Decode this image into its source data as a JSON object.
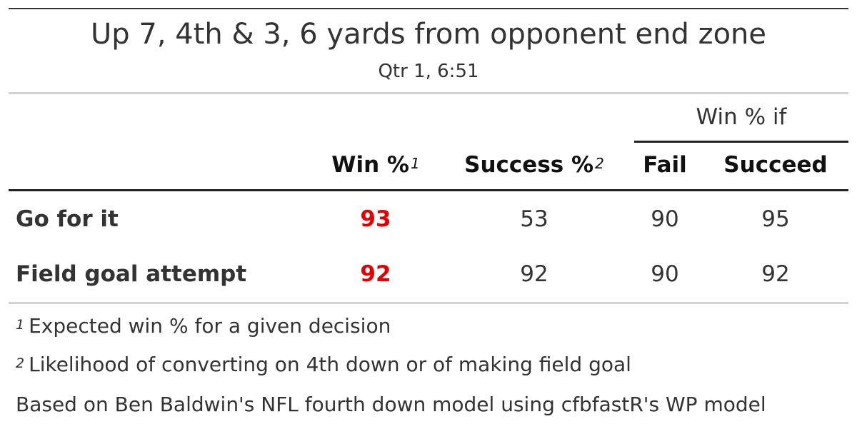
{
  "title": "Up 7, 4th & 3, 6 yards from opponent end zone",
  "subtitle": "Qtr 1, 6:51",
  "spanner_label": "Win % if",
  "columns": {
    "win": {
      "label": "Win %",
      "mark": "1"
    },
    "success": {
      "label": "Success %",
      "mark": "2"
    },
    "fail": {
      "label": "Fail"
    },
    "succeed": {
      "label": "Succeed"
    }
  },
  "rows": [
    {
      "label": "Go for it",
      "win": "93",
      "success": "53",
      "fail": "90",
      "succeed": "95"
    },
    {
      "label": "Field goal attempt",
      "win": "92",
      "success": "92",
      "fail": "90",
      "succeed": "92"
    }
  ],
  "footnotes": [
    {
      "mark": "1",
      "text": "Expected win % for a given decision"
    },
    {
      "mark": "2",
      "text": "Likelihood of converting on 4th down or of making field goal"
    }
  ],
  "source_note": "Based on Ben Baldwin's NFL fourth down model using cfbfastR's WP model",
  "colors": {
    "best_win_highlight": "#e30000",
    "text": "#333333",
    "divider": "#d3d3d3"
  }
}
